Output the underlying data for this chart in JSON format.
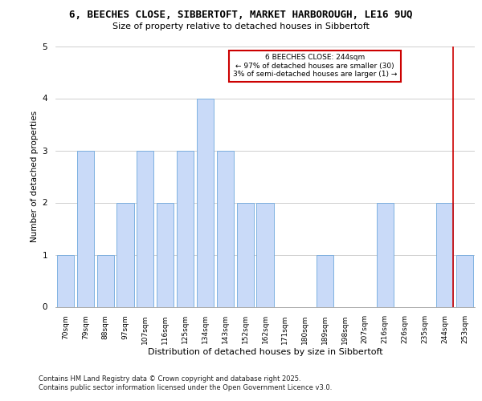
{
  "title_line1": "6, BEECHES CLOSE, SIBBERTOFT, MARKET HARBOROUGH, LE16 9UQ",
  "title_line2": "Size of property relative to detached houses in Sibbertoft",
  "xlabel": "Distribution of detached houses by size in Sibbertoft",
  "ylabel": "Number of detached properties",
  "categories": [
    "70sqm",
    "79sqm",
    "88sqm",
    "97sqm",
    "107sqm",
    "116sqm",
    "125sqm",
    "134sqm",
    "143sqm",
    "152sqm",
    "162sqm",
    "171sqm",
    "180sqm",
    "189sqm",
    "198sqm",
    "207sqm",
    "216sqm",
    "226sqm",
    "235sqm",
    "244sqm",
    "253sqm"
  ],
  "values": [
    1,
    3,
    1,
    2,
    3,
    2,
    3,
    4,
    3,
    2,
    2,
    0,
    0,
    1,
    0,
    0,
    2,
    0,
    0,
    2,
    1
  ],
  "highlight_index": 19,
  "bar_color": "#c9daf8",
  "bar_edge_color": "#6fa8dc",
  "highlight_line_color": "#cc0000",
  "annotation_box_color": "#ffffff",
  "annotation_border_color": "#cc0000",
  "annotation_text_line1": "6 BEECHES CLOSE: 244sqm",
  "annotation_text_line2": "← 97% of detached houses are smaller (30)",
  "annotation_text_line3": "3% of semi-detached houses are larger (1) →",
  "ylim": [
    0,
    5
  ],
  "yticks": [
    0,
    1,
    2,
    3,
    4,
    5
  ],
  "footnote_line1": "Contains HM Land Registry data © Crown copyright and database right 2025.",
  "footnote_line2": "Contains public sector information licensed under the Open Government Licence v3.0.",
  "title_fontsize": 9,
  "subtitle_fontsize": 8,
  "axis_label_fontsize": 8,
  "tick_fontsize": 6.5,
  "ylabel_fontsize": 7.5,
  "footnote_fontsize": 6,
  "annot_fontsize": 6.5
}
